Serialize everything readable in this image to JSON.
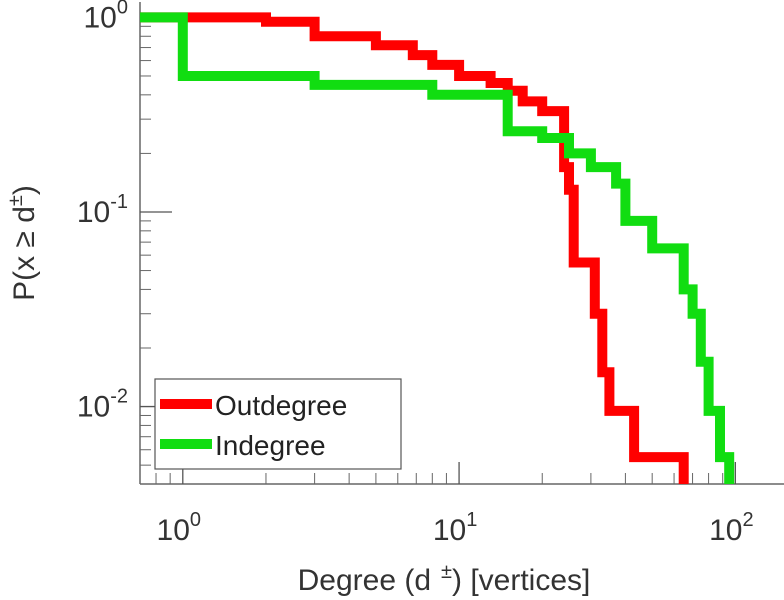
{
  "chart_data": {
    "type": "line",
    "step": true,
    "x_scale": "log",
    "y_scale": "log",
    "xlim": [
      0.7,
      150
    ],
    "ylim": [
      0.004,
      1.2
    ],
    "grid": false,
    "legend_placement": "bottom-left",
    "xlabel": {
      "text": "Degree (d",
      "superscript": "±",
      "suffix": ") [vertices]"
    },
    "ylabel": {
      "text": "P(x ≥ d",
      "superscript": "±",
      "suffix": ")"
    },
    "x_ticks": [
      {
        "value": 1,
        "base": "10",
        "exp": "0"
      },
      {
        "value": 10,
        "base": "10",
        "exp": "1"
      },
      {
        "value": 100,
        "base": "10",
        "exp": "2"
      }
    ],
    "y_ticks": [
      {
        "value": 1,
        "base": "10",
        "exp": "0"
      },
      {
        "value": 0.1,
        "base": "10",
        "exp": "-1"
      },
      {
        "value": 0.01,
        "base": "10",
        "exp": "-2"
      }
    ],
    "series": [
      {
        "name": "Outdegree",
        "color": "#ff0000",
        "points": [
          [
            0.7,
            1.0
          ],
          [
            2.0,
            1.0
          ],
          [
            2.0,
            0.95
          ],
          [
            3.0,
            0.95
          ],
          [
            3.0,
            0.8
          ],
          [
            5.0,
            0.8
          ],
          [
            5.0,
            0.72
          ],
          [
            6.8,
            0.72
          ],
          [
            6.8,
            0.64
          ],
          [
            8.0,
            0.64
          ],
          [
            8.0,
            0.57
          ],
          [
            10.0,
            0.57
          ],
          [
            10.0,
            0.5
          ],
          [
            13.0,
            0.5
          ],
          [
            13.0,
            0.46
          ],
          [
            15.0,
            0.46
          ],
          [
            15.0,
            0.42
          ],
          [
            17.0,
            0.42
          ],
          [
            17.0,
            0.37
          ],
          [
            20.0,
            0.37
          ],
          [
            20.0,
            0.33
          ],
          [
            24.0,
            0.33
          ],
          [
            24.0,
            0.17
          ],
          [
            25.0,
            0.17
          ],
          [
            25.0,
            0.13
          ],
          [
            26.0,
            0.13
          ],
          [
            26.0,
            0.055
          ],
          [
            31.0,
            0.055
          ],
          [
            31.0,
            0.03
          ],
          [
            33.0,
            0.03
          ],
          [
            33.0,
            0.015
          ],
          [
            35.0,
            0.015
          ],
          [
            35.0,
            0.0095
          ],
          [
            43.0,
            0.0095
          ],
          [
            43.0,
            0.0055
          ],
          [
            65.0,
            0.0055
          ],
          [
            65.0,
            0.004
          ]
        ]
      },
      {
        "name": "Indegree",
        "color": "#11dd11",
        "points": [
          [
            0.7,
            1.0
          ],
          [
            1.0,
            1.0
          ],
          [
            1.0,
            0.5
          ],
          [
            3.0,
            0.5
          ],
          [
            3.0,
            0.45
          ],
          [
            8.0,
            0.45
          ],
          [
            8.0,
            0.4
          ],
          [
            15.0,
            0.4
          ],
          [
            15.0,
            0.26
          ],
          [
            20.0,
            0.26
          ],
          [
            20.0,
            0.24
          ],
          [
            25.0,
            0.24
          ],
          [
            25.0,
            0.2
          ],
          [
            30.0,
            0.2
          ],
          [
            30.0,
            0.17
          ],
          [
            37.0,
            0.17
          ],
          [
            37.0,
            0.14
          ],
          [
            40.0,
            0.14
          ],
          [
            40.0,
            0.09
          ],
          [
            50.0,
            0.09
          ],
          [
            50.0,
            0.065
          ],
          [
            65.0,
            0.065
          ],
          [
            65.0,
            0.04
          ],
          [
            70.0,
            0.04
          ],
          [
            70.0,
            0.03
          ],
          [
            75.0,
            0.03
          ],
          [
            75.0,
            0.017
          ],
          [
            80.0,
            0.017
          ],
          [
            80.0,
            0.0095
          ],
          [
            88.0,
            0.0095
          ],
          [
            88.0,
            0.0055
          ],
          [
            95.0,
            0.0055
          ],
          [
            95.0,
            0.004
          ]
        ]
      }
    ]
  }
}
